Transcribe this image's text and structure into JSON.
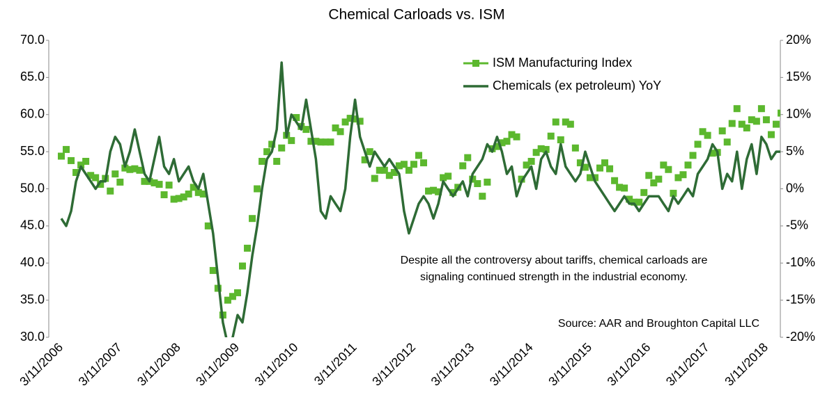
{
  "chart_data": {
    "type": "line",
    "title": "Chemical Carloads vs. ISM",
    "annotations": [
      "Despite all the controversy about tariffs, chemical carloads are",
      "signaling continued strength in the industrial economy.",
      "Source: AAR and Broughton Capital LLC"
    ],
    "categories": [
      "3/11/2006",
      null,
      null,
      null,
      null,
      null,
      null,
      null,
      null,
      null,
      null,
      null,
      "3/11/2007",
      null,
      null,
      null,
      null,
      null,
      null,
      null,
      null,
      null,
      null,
      null,
      "3/11/2008",
      null,
      null,
      null,
      null,
      null,
      null,
      null,
      null,
      null,
      null,
      null,
      "3/11/2009",
      null,
      null,
      null,
      null,
      null,
      null,
      null,
      null,
      null,
      null,
      null,
      "3/11/2010",
      null,
      null,
      null,
      null,
      null,
      null,
      null,
      null,
      null,
      null,
      null,
      "3/11/2011",
      null,
      null,
      null,
      null,
      null,
      null,
      null,
      null,
      null,
      null,
      null,
      "3/11/2012",
      null,
      null,
      null,
      null,
      null,
      null,
      null,
      null,
      null,
      null,
      null,
      "3/11/2013",
      null,
      null,
      null,
      null,
      null,
      null,
      null,
      null,
      null,
      null,
      null,
      "3/11/2014",
      null,
      null,
      null,
      null,
      null,
      null,
      null,
      null,
      null,
      null,
      null,
      "3/11/2015",
      null,
      null,
      null,
      null,
      null,
      null,
      null,
      null,
      null,
      null,
      null,
      "3/11/2016",
      null,
      null,
      null,
      null,
      null,
      null,
      null,
      null,
      null,
      null,
      null,
      "3/11/2017",
      null,
      null,
      null,
      null,
      null,
      null,
      null,
      null,
      null,
      null,
      null,
      "3/11/2018",
      null,
      null,
      null
    ],
    "series": [
      {
        "name": "ISM Manufacturing Index",
        "color": "#5cb82e",
        "marker": "square",
        "values": [
          54.4,
          55.3,
          53.8,
          52.2,
          53.2,
          53.7,
          51.8,
          51.5,
          50.6,
          51.4,
          49.7,
          52.0,
          50.9,
          52.8,
          52.6,
          52.7,
          52.5,
          51.0,
          51.0,
          50.8,
          50.6,
          49.2,
          50.5,
          48.6,
          48.7,
          48.9,
          49.3,
          50.2,
          49.5,
          49.3,
          45.0,
          39.0,
          36.6,
          33.0,
          35.0,
          35.5,
          36.0,
          39.6,
          42.0,
          46.0,
          50.0,
          53.7,
          55.0,
          56.0,
          53.7,
          55.5,
          57.2,
          56.5,
          59.6,
          58.4,
          58.0,
          56.4,
          56.4,
          56.3,
          56.3,
          56.3,
          58.2,
          57.7,
          59.0,
          59.5,
          59.4,
          59.1,
          53.9,
          55.0,
          51.4,
          52.5,
          52.5,
          51.8,
          52.2,
          53.1,
          53.3,
          52.5,
          53.3,
          54.5,
          53.5,
          49.7,
          49.8,
          49.6,
          51.5,
          51.7,
          49.5,
          50.2,
          53.1,
          54.2,
          51.3,
          50.7,
          49.0,
          50.9,
          55.4,
          55.7,
          56.2,
          56.4,
          57.3,
          57.0,
          51.3,
          53.2,
          53.7,
          54.9,
          55.4,
          55.3,
          57.1,
          59.0,
          56.6,
          59.0,
          58.7,
          55.5,
          53.5,
          52.9,
          51.5,
          51.5,
          52.8,
          53.5,
          52.7,
          51.1,
          50.2,
          50.1,
          48.6,
          48.2,
          48.2,
          49.5,
          51.8,
          50.8,
          51.3,
          53.2,
          52.6,
          49.4,
          51.5,
          51.9,
          53.2,
          54.5,
          56.0,
          57.7,
          57.2,
          54.8,
          54.9,
          57.8,
          56.3,
          58.8,
          60.8,
          58.7,
          58.2,
          59.3,
          59.1,
          60.8,
          59.3,
          57.3,
          58.7,
          60.2
        ]
      },
      {
        "name": "Chemicals (ex petroleum) YoY",
        "color": "#2e6b35",
        "axis": "y2",
        "values": [
          -4,
          -5,
          -3,
          1,
          3,
          2,
          1,
          0,
          1,
          1,
          5,
          7,
          6,
          3,
          5,
          8,
          5,
          2,
          1,
          4,
          7,
          3,
          2,
          4,
          1,
          2,
          3,
          1,
          0,
          2,
          -2,
          -6,
          -12,
          -18,
          -21,
          -20,
          -17,
          -18,
          -14,
          -9,
          -5,
          0,
          4,
          5,
          8,
          17,
          7,
          10,
          9,
          8,
          12,
          8,
          4,
          -3,
          -4,
          -1,
          -2,
          -3,
          0,
          7,
          12,
          7,
          5,
          3,
          5,
          4,
          3,
          4,
          3,
          2,
          -3,
          -6,
          -4,
          -2,
          -1,
          -2,
          -4,
          -2,
          1,
          0,
          -1,
          0,
          1,
          -1,
          2,
          3,
          4,
          6,
          5,
          7,
          5,
          2,
          3,
          -1,
          1,
          2,
          3,
          0,
          4,
          5,
          3,
          2,
          6,
          3,
          2,
          1,
          2,
          5,
          3,
          1,
          0,
          -1,
          -2,
          -3,
          -2,
          -1,
          -2,
          -2,
          -3,
          -2,
          -1,
          -1,
          -1,
          -2,
          -3,
          -1,
          -2,
          -1,
          0,
          -1,
          2,
          3,
          4,
          6,
          5,
          0,
          2,
          1,
          5,
          0,
          4,
          6,
          2,
          7,
          6,
          4,
          5,
          5
        ]
      }
    ],
    "ylim": [
      30,
      70
    ],
    "yticks": [
      {
        "value": 30,
        "label": "30.0"
      },
      {
        "value": 35,
        "label": "35.0"
      },
      {
        "value": 40,
        "label": "40.0"
      },
      {
        "value": 45,
        "label": "45.0"
      },
      {
        "value": 50,
        "label": "50.0"
      },
      {
        "value": 55,
        "label": "55.0"
      },
      {
        "value": 60,
        "label": "60.0"
      },
      {
        "value": 65,
        "label": "65.0"
      },
      {
        "value": 70,
        "label": "70.0"
      }
    ],
    "y2lim": [
      -20,
      20
    ],
    "y2ticks": [
      {
        "value": -20,
        "label": "-20%"
      },
      {
        "value": -15,
        "label": "-15%"
      },
      {
        "value": -10,
        "label": "-10%"
      },
      {
        "value": -5,
        "label": "-5%"
      },
      {
        "value": 0,
        "label": "0%"
      },
      {
        "value": 5,
        "label": "5%"
      },
      {
        "value": 10,
        "label": "10%"
      },
      {
        "value": 15,
        "label": "15%"
      },
      {
        "value": 20,
        "label": "20%"
      }
    ],
    "legend": "top-right",
    "grid": false
  }
}
